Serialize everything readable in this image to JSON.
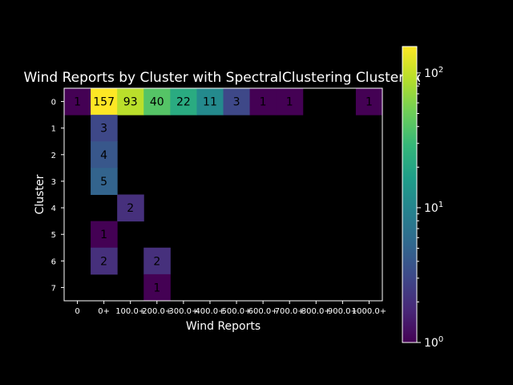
{
  "chart_data": {
    "type": "heatmap",
    "title": "Wind Reports by Cluster with SpectralClustering Clustering",
    "xlabel": "Wind Reports",
    "ylabel": "Cluster",
    "x_categories": [
      "0",
      "0+",
      "100.0+",
      "200.0+",
      "300.0+",
      "400.0+",
      "500.0+",
      "600.0+",
      "700.0+",
      "800.0+",
      "900.0+",
      "1000.0+"
    ],
    "y_categories": [
      "0",
      "1",
      "2",
      "3",
      "4",
      "5",
      "6",
      "7"
    ],
    "values": [
      [
        1,
        157,
        93,
        40,
        22,
        11,
        3,
        1,
        1,
        null,
        null,
        1
      ],
      [
        null,
        3,
        null,
        null,
        null,
        null,
        null,
        null,
        null,
        null,
        null,
        null
      ],
      [
        null,
        4,
        null,
        null,
        null,
        null,
        null,
        null,
        null,
        null,
        null,
        null
      ],
      [
        null,
        5,
        null,
        null,
        null,
        null,
        null,
        null,
        null,
        null,
        null,
        null
      ],
      [
        null,
        null,
        2,
        null,
        null,
        null,
        null,
        null,
        null,
        null,
        null,
        null
      ],
      [
        null,
        1,
        null,
        null,
        null,
        null,
        null,
        null,
        null,
        null,
        null,
        null
      ],
      [
        null,
        2,
        null,
        2,
        null,
        null,
        null,
        null,
        null,
        null,
        null,
        null
      ],
      [
        null,
        null,
        null,
        1,
        null,
        null,
        null,
        null,
        null,
        null,
        null,
        null
      ]
    ],
    "colorscale": "viridis",
    "color_scale_type": "log",
    "color_range": [
      1,
      157
    ],
    "colorbar_ticks": [
      {
        "value": 1,
        "base": "10",
        "exp": "0"
      },
      {
        "value": 10,
        "base": "10",
        "exp": "1"
      },
      {
        "value": 100,
        "base": "10",
        "exp": "2"
      }
    ],
    "grid": false,
    "colorbar_placement": "right"
  }
}
